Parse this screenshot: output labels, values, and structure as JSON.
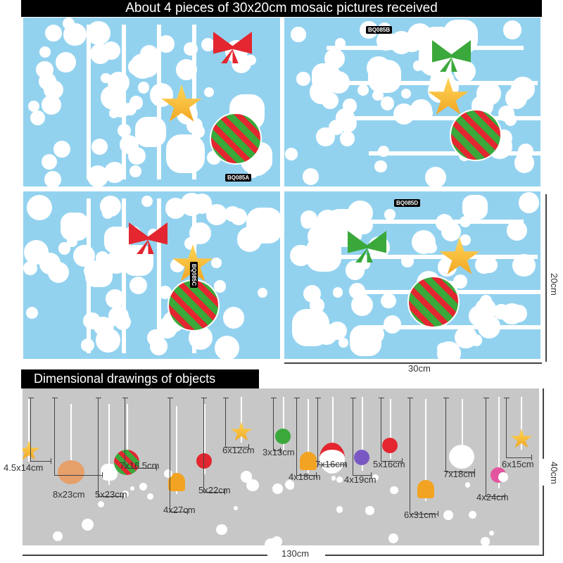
{
  "header": {
    "title": "About 4 pieces of 30x20cm mosaic pictures received"
  },
  "panels": [
    {
      "code": "BQ085A"
    },
    {
      "code": "BQ085B"
    },
    {
      "code": "BQ085C"
    },
    {
      "code": "BQ085D"
    }
  ],
  "panel_dimensions": {
    "width": "30cm",
    "height": "20cm"
  },
  "section": {
    "title": "Dimensional drawings of objects"
  },
  "overall_dimensions": {
    "width": "130cm",
    "height": "40cm"
  },
  "ornaments": [
    {
      "label": "4.5x14cm"
    },
    {
      "label": "8x23cm"
    },
    {
      "label": "5x23cm"
    },
    {
      "label": "7x16.5cm"
    },
    {
      "label": "4x27cm"
    },
    {
      "label": "5x22cm"
    },
    {
      "label": "6x12cm"
    },
    {
      "label": "3x13cm"
    },
    {
      "label": "4x18cm"
    },
    {
      "label": "7x16cm"
    },
    {
      "label": "4x19cm"
    },
    {
      "label": "5x16cm"
    },
    {
      "label": "6x31cm"
    },
    {
      "label": "7x18cm"
    },
    {
      "label": "4x24cm"
    },
    {
      "label": "6x15cm"
    }
  ],
  "colors": {
    "panel": "#93d2ef",
    "backdrop": "#c7c7c7",
    "title_bar": "#000000",
    "star": "#f5b82e",
    "bow": "#e3262f",
    "green": "#3aa83a"
  }
}
